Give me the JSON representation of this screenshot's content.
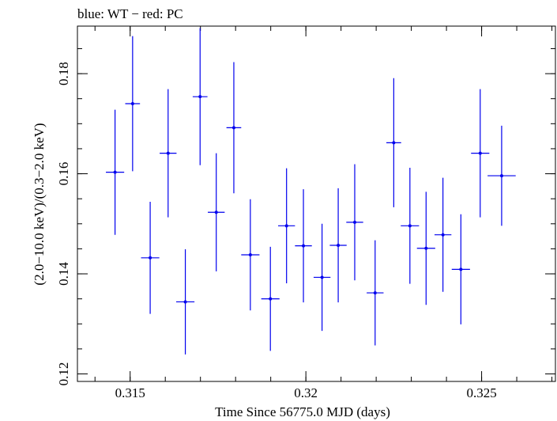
{
  "header": {
    "title": "blue: WT − red: PC"
  },
  "chart_data": {
    "type": "scatter",
    "title": "blue: WT − red: PC",
    "xlabel": "Time Since 56775.0 MJD (days)",
    "ylabel": "(2.0−10.0 keV)/(0.3−2.0 keV)",
    "xlim": [
      0.3135,
      0.3271
    ],
    "ylim": [
      0.1185,
      0.1895
    ],
    "x_ticks": [
      {
        "value": 0.315,
        "label": "0.315"
      },
      {
        "value": 0.32,
        "label": "0.32"
      },
      {
        "value": 0.325,
        "label": "0.325"
      }
    ],
    "y_ticks": [
      {
        "value": 0.12,
        "label": "0.12"
      },
      {
        "value": 0.14,
        "label": "0.14"
      },
      {
        "value": 0.16,
        "label": "0.16"
      },
      {
        "value": 0.18,
        "label": "0.18"
      }
    ],
    "x_minor_step": 0.001,
    "y_minor_step": 0.005,
    "grid": false,
    "series": [
      {
        "color": "#0000ee",
        "points": [
          {
            "x": 0.31457,
            "xerr": 0.00026,
            "y": 0.1603,
            "yerr": 0.0125
          },
          {
            "x": 0.31507,
            "xerr": 0.00021,
            "y": 0.174,
            "yerr": 0.0135
          },
          {
            "x": 0.31557,
            "xerr": 0.00026,
            "y": 0.1432,
            "yerr": 0.0112
          },
          {
            "x": 0.31608,
            "xerr": 0.00024,
            "y": 0.1641,
            "yerr": 0.0128
          },
          {
            "x": 0.31657,
            "xerr": 0.00026,
            "y": 0.1344,
            "yerr": 0.0105
          },
          {
            "x": 0.31699,
            "xerr": 0.00021,
            "y": 0.1754,
            "yerr": 0.0137
          },
          {
            "x": 0.31745,
            "xerr": 0.00024,
            "y": 0.1523,
            "yerr": 0.0118
          },
          {
            "x": 0.31795,
            "xerr": 0.00021,
            "y": 0.1692,
            "yerr": 0.0131
          },
          {
            "x": 0.31842,
            "xerr": 0.00026,
            "y": 0.1438,
            "yerr": 0.0111
          },
          {
            "x": 0.31899,
            "xerr": 0.00026,
            "y": 0.135,
            "yerr": 0.0104
          },
          {
            "x": 0.31945,
            "xerr": 0.00024,
            "y": 0.1496,
            "yerr": 0.0115
          },
          {
            "x": 0.31993,
            "xerr": 0.00024,
            "y": 0.1456,
            "yerr": 0.0113
          },
          {
            "x": 0.32046,
            "xerr": 0.00024,
            "y": 0.1393,
            "yerr": 0.0107
          },
          {
            "x": 0.32092,
            "xerr": 0.00024,
            "y": 0.1457,
            "yerr": 0.0114
          },
          {
            "x": 0.32139,
            "xerr": 0.00024,
            "y": 0.1503,
            "yerr": 0.0116
          },
          {
            "x": 0.32197,
            "xerr": 0.00024,
            "y": 0.1362,
            "yerr": 0.0105
          },
          {
            "x": 0.3225,
            "xerr": 0.00021,
            "y": 0.1662,
            "yerr": 0.0129
          },
          {
            "x": 0.32296,
            "xerr": 0.00026,
            "y": 0.1496,
            "yerr": 0.0116
          },
          {
            "x": 0.32342,
            "xerr": 0.00026,
            "y": 0.1451,
            "yerr": 0.0113
          },
          {
            "x": 0.3239,
            "xerr": 0.00024,
            "y": 0.1478,
            "yerr": 0.0114
          },
          {
            "x": 0.32441,
            "xerr": 0.00026,
            "y": 0.1409,
            "yerr": 0.011
          },
          {
            "x": 0.32496,
            "xerr": 0.00026,
            "y": 0.1641,
            "yerr": 0.0128
          },
          {
            "x": 0.32557,
            "xerr": 0.0004,
            "y": 0.1596,
            "yerr": 0.01
          }
        ]
      }
    ]
  }
}
